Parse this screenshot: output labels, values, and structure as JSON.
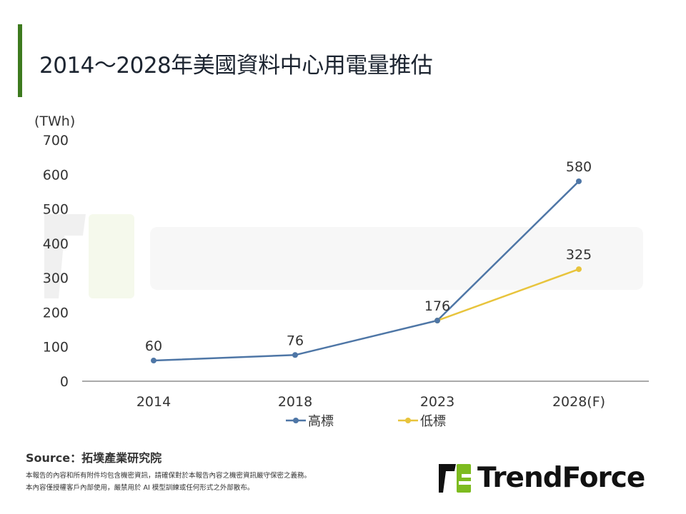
{
  "title": "2014～2028年美國資料中心用電量推估",
  "source": "Source：拓墣產業研究院",
  "notes": [
    "本報告的內容和所有附件均包含機密資訊，請確保對於本報告內容之機密資訊嚴守保密之義務。",
    "本內容僅授權客戶內部使用，嚴禁用於 AI 模型訓練或任何形式之外部散布。"
  ],
  "logo": "TrendForce",
  "watermark": "TrendForce",
  "chart_data": {
    "type": "line",
    "ylabel": "(TWh)",
    "ylim": [
      0,
      700
    ],
    "yticks": [
      "0",
      "100",
      "200",
      "300",
      "400",
      "500",
      "600",
      "700"
    ],
    "categories": [
      "2014",
      "2018",
      "2023",
      "2028(F)"
    ],
    "grid": false,
    "legend": "bottom",
    "series": [
      {
        "name": "高標",
        "color": "#4e76a6",
        "values": [
          60,
          76,
          176,
          580
        ]
      },
      {
        "name": "低標",
        "color": "#e8c43c",
        "values": [
          null,
          null,
          176,
          325
        ]
      }
    ],
    "data_labels": [
      "60",
      "76",
      "176",
      "580",
      "325"
    ]
  }
}
